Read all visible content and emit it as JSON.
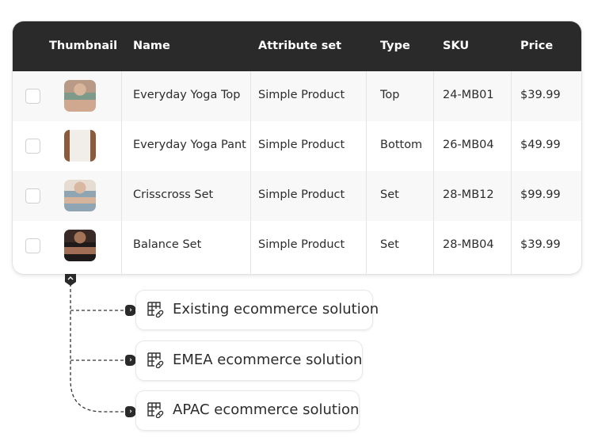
{
  "table": {
    "columns": [
      "Thumbnail",
      "Name",
      "Attribute set",
      "Type",
      "SKU",
      "Price"
    ],
    "rows": [
      {
        "name": "Everyday Yoga Top",
        "attribute_set": "Simple Product",
        "type": "Top",
        "sku": "24-MB01",
        "price": "$39.99",
        "thumbnail": "woman in green sports top"
      },
      {
        "name": "Everyday Yoga Pant",
        "attribute_set": "Simple Product",
        "type": "Bottom",
        "sku": "26-MB04",
        "price": "$49.99",
        "thumbnail": "white yoga pants"
      },
      {
        "name": "Crisscross Set",
        "attribute_set": "Simple Product",
        "type": "Set",
        "sku": "28-MB12",
        "price": "$99.99",
        "thumbnail": "woman in blue crisscross set"
      },
      {
        "name": "Balance Set",
        "attribute_set": "Simple Product",
        "type": "Set",
        "sku": "28-MB04",
        "price": "$39.99",
        "thumbnail": "woman in black set"
      }
    ]
  },
  "solutions": [
    {
      "label": "Existing ecommerce solution",
      "icon": "table-link-icon"
    },
    {
      "label": "EMEA ecommerce solution",
      "icon": "table-link-icon"
    },
    {
      "label": "APAC ecommerce solution",
      "icon": "table-link-icon"
    }
  ],
  "colors": {
    "header": "#2a2a2a",
    "row_alt": "#f8f8f8"
  }
}
